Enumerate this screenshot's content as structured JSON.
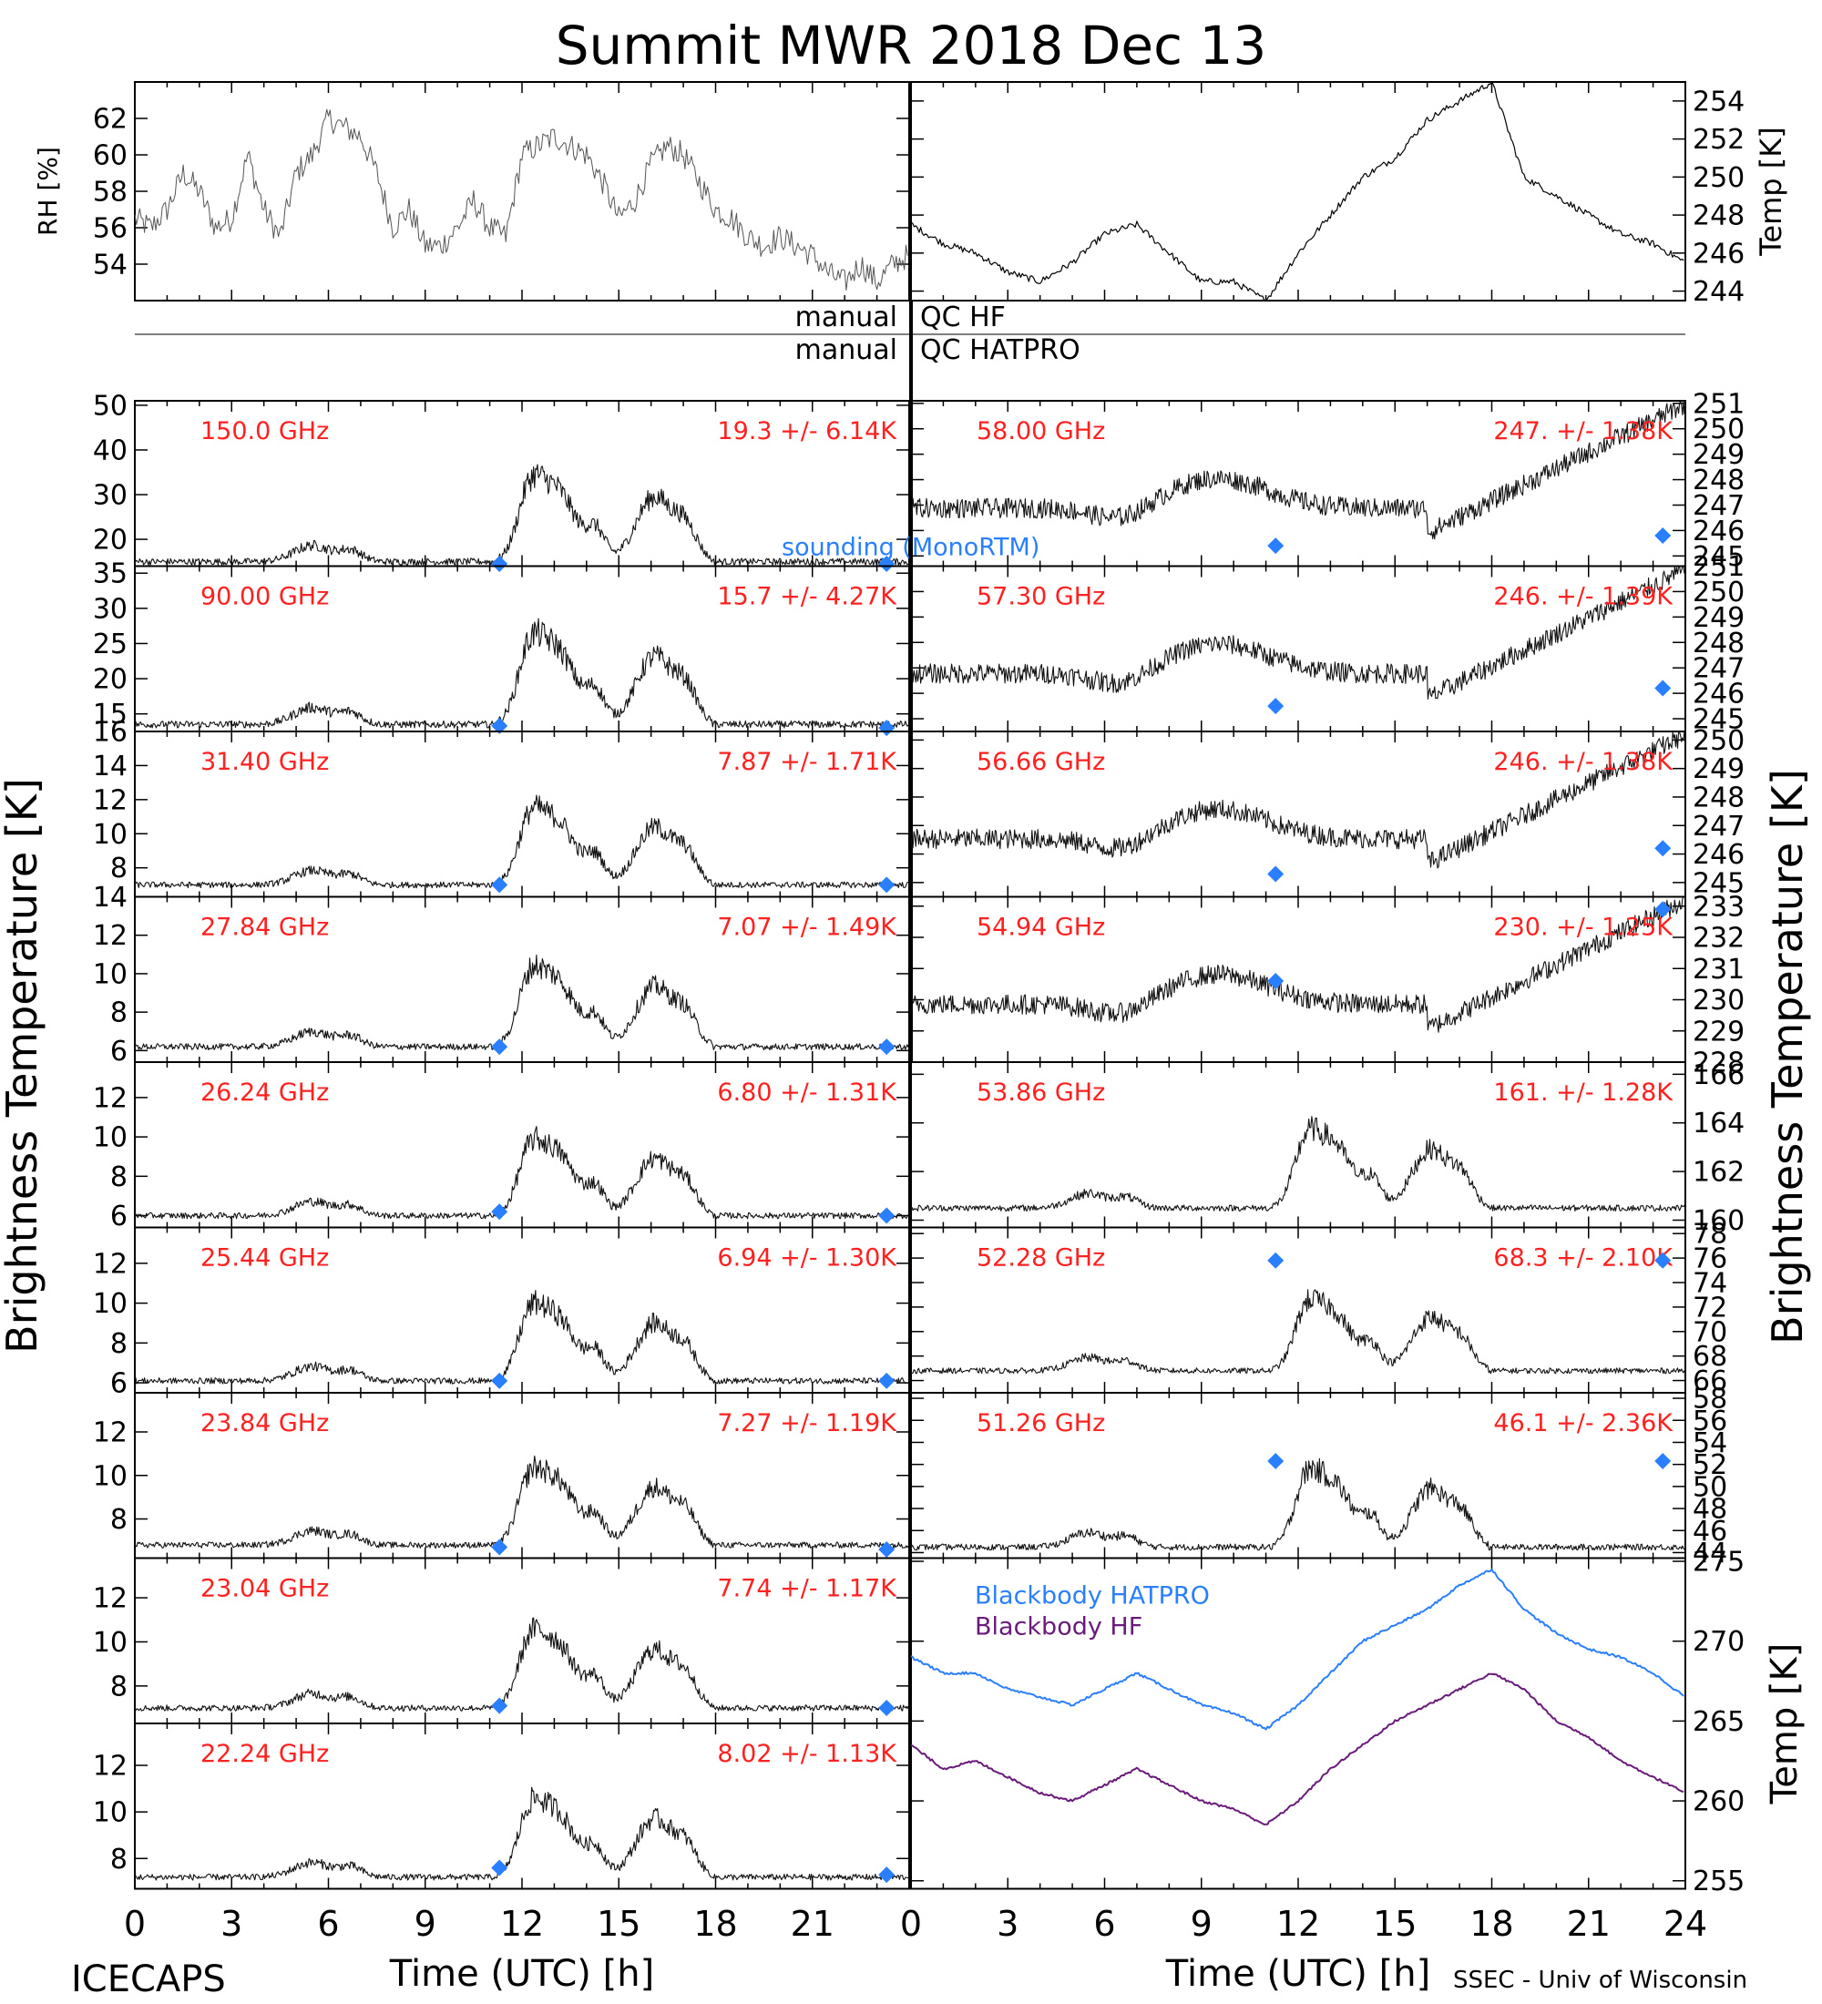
{
  "title": "Summit MWR 2018 Dec 13",
  "footer": {
    "left": "ICECAPS",
    "right": "SSEC - Univ of Wisconsin"
  },
  "x_axis": {
    "label": "Time (UTC) [h]",
    "left_ticks": [
      "0",
      "3",
      "6",
      "9",
      "12",
      "15",
      "18",
      "21"
    ],
    "right_ticks": [
      "0",
      "3",
      "6",
      "9",
      "12",
      "15",
      "18",
      "21",
      "24"
    ]
  },
  "left_axis_label": "Brightness Temperature [K]",
  "right_axis_label": "Brightness Temperature [K]",
  "qc": {
    "manual": "manual",
    "hf": "QC HF",
    "hatpro": "QC HATPRO"
  },
  "colors": {
    "annotation": "#ff2020",
    "sounding": "#2a7fff",
    "hatpro": "#2a7fff",
    "hf": "#6a1a7a",
    "trace": "#000000"
  },
  "chart_data": [
    {
      "type": "line",
      "id": "rh",
      "ylabel": "RH [%]",
      "ylim": [
        52,
        64
      ],
      "yticks": [
        54,
        56,
        58,
        60,
        62
      ],
      "x": [
        0,
        0.5,
        1,
        1.5,
        2,
        2.5,
        3,
        3.5,
        4,
        4.5,
        5,
        5.5,
        6,
        6.5,
        7,
        7.5,
        8,
        8.5,
        9,
        9.5,
        10,
        10.5,
        11,
        11.5,
        12,
        12.5,
        13,
        13.5,
        14,
        14.5,
        15,
        15.5,
        16,
        16.5,
        17,
        17.5,
        18,
        18.5,
        19,
        19.5,
        20,
        20.5,
        21,
        21.5,
        22,
        22.5,
        23,
        23.5,
        24
      ],
      "values": [
        56.5,
        56,
        57,
        59,
        58,
        56,
        56.5,
        60,
        57,
        55.5,
        59,
        60,
        62,
        61.5,
        61,
        59,
        56,
        57,
        55,
        55,
        56,
        57.5,
        56,
        55.5,
        60,
        60.5,
        61,
        60.5,
        60,
        58.5,
        56.5,
        57.5,
        59.5,
        60.5,
        60,
        58.5,
        57,
        56.5,
        55.5,
        55,
        55.5,
        55,
        54.5,
        53.5,
        53,
        54,
        53,
        54,
        54.5
      ]
    },
    {
      "type": "line",
      "id": "temp",
      "ylabel": "Temp [K]",
      "ylim": [
        243.5,
        255
      ],
      "yticks": [
        244,
        246,
        248,
        250,
        252,
        254
      ],
      "x": [
        0,
        1,
        2,
        3,
        4,
        5,
        6,
        7,
        8,
        9,
        10,
        11,
        12,
        13,
        14,
        15,
        16,
        17,
        18,
        19,
        20,
        21,
        22,
        23,
        24
      ],
      "values": [
        247.5,
        246.5,
        246,
        245,
        244.5,
        245.5,
        247,
        247.5,
        246,
        244.5,
        244.5,
        243.5,
        246,
        248,
        250,
        251,
        253,
        254,
        255,
        250,
        249,
        248,
        247,
        246.5,
        245.5
      ]
    },
    {
      "type": "line",
      "id": "ch150",
      "label": "150.0 GHz",
      "stat": "19.3 +/-  6.14K",
      "ylim": [
        14,
        51
      ],
      "yticks": [
        20,
        30,
        40,
        50
      ],
      "base": 15,
      "amp": 30,
      "sounding": [
        [
          11.3,
          14.5
        ],
        [
          23.3,
          14.5
        ]
      ],
      "sounding_label": "sounding (MonoRTM)"
    },
    {
      "type": "line",
      "id": "ch90",
      "label": "90.00 GHz",
      "stat": "15.7 +/-  4.27K",
      "ylim": [
        12.5,
        36
      ],
      "yticks": [
        15,
        20,
        25,
        30,
        35
      ],
      "base": 13.5,
      "amp": 20,
      "sounding": [
        [
          11.3,
          13.3
        ],
        [
          23.3,
          13
        ]
      ]
    },
    {
      "type": "line",
      "id": "ch31",
      "label": "31.40 GHz",
      "stat": "7.87 +/- 1.71K",
      "ylim": [
        6.3,
        16
      ],
      "yticks": [
        8,
        10,
        12,
        14,
        16
      ],
      "base": 7,
      "amp": 7,
      "sounding": [
        [
          11.3,
          7
        ],
        [
          23.3,
          7
        ]
      ]
    },
    {
      "type": "line",
      "id": "ch27",
      "label": "27.84 GHz",
      "stat": "7.07 +/- 1.49K",
      "ylim": [
        5.4,
        14
      ],
      "yticks": [
        6,
        8,
        10,
        12,
        14
      ],
      "base": 6.2,
      "amp": 6.5,
      "sounding": [
        [
          11.3,
          6.2
        ],
        [
          23.3,
          6.2
        ]
      ]
    },
    {
      "type": "line",
      "id": "ch26",
      "label": "26.24 GHz",
      "stat": "6.80 +/- 1.31K",
      "ylim": [
        5.4,
        13.8
      ],
      "yticks": [
        6,
        8,
        10,
        12
      ],
      "base": 6,
      "amp": 6,
      "sounding": [
        [
          11.3,
          6.2
        ],
        [
          23.3,
          6
        ]
      ]
    },
    {
      "type": "line",
      "id": "ch25",
      "label": "25.44 GHz",
      "stat": "6.94 +/- 1.30K",
      "ylim": [
        5.5,
        13.8
      ],
      "yticks": [
        6,
        8,
        10,
        12
      ],
      "base": 6.1,
      "amp": 6,
      "sounding": [
        [
          11.3,
          6.1
        ],
        [
          23.3,
          6.1
        ]
      ]
    },
    {
      "type": "line",
      "id": "ch2384",
      "label": "23.84 GHz",
      "stat": "7.27 +/- 1.19K",
      "ylim": [
        6.2,
        13.8
      ],
      "yticks": [
        8,
        10,
        12
      ],
      "base": 6.8,
      "amp": 5.5,
      "sounding": [
        [
          11.3,
          6.7
        ],
        [
          23.3,
          6.6
        ]
      ]
    },
    {
      "type": "line",
      "id": "ch2304",
      "label": "23.04 GHz",
      "stat": "7.74 +/- 1.17K",
      "ylim": [
        6.3,
        13.8
      ],
      "yticks": [
        8,
        10,
        12
      ],
      "base": 7,
      "amp": 5.5,
      "sounding": [
        [
          11.3,
          7.1
        ],
        [
          23.3,
          7
        ]
      ]
    },
    {
      "type": "line",
      "id": "ch2224",
      "label": "22.24 GHz",
      "stat": "8.02 +/- 1.13K",
      "ylim": [
        6.7,
        13.8
      ],
      "yticks": [
        8,
        10,
        12
      ],
      "base": 7.2,
      "amp": 5.2,
      "sounding": [
        [
          11.3,
          7.6
        ],
        [
          23.3,
          7.3
        ]
      ]
    },
    {
      "type": "line",
      "id": "ch5800",
      "label": "58.00 GHz",
      "stat": "247. +/- 1.38K",
      "ylim": [
        244.6,
        251.1
      ],
      "yticks": [
        245,
        246,
        247,
        248,
        249,
        250,
        251
      ],
      "sounding": [
        [
          11.3,
          245.4
        ],
        [
          23.3,
          245.8
        ]
      ]
    },
    {
      "type": "line",
      "id": "ch5730",
      "label": "57.30 GHz",
      "stat": "246. +/- 1.39K",
      "ylim": [
        244.5,
        251
      ],
      "yticks": [
        245,
        246,
        247,
        248,
        249,
        250,
        251
      ],
      "sounding": [
        [
          11.3,
          245.5
        ],
        [
          23.3,
          246.2
        ]
      ]
    },
    {
      "type": "line",
      "id": "ch5666",
      "label": "56.66 GHz",
      "stat": "246. +/- 1.38K",
      "ylim": [
        244.5,
        250.3
      ],
      "yticks": [
        245,
        246,
        247,
        248,
        249,
        250
      ],
      "sounding": [
        [
          11.3,
          245.3
        ],
        [
          23.3,
          246.2
        ]
      ]
    },
    {
      "type": "line",
      "id": "ch5494",
      "label": "54.94 GHz",
      "stat": "230. +/- 1.25K",
      "ylim": [
        228,
        233.3
      ],
      "yticks": [
        228,
        229,
        230,
        231,
        232,
        233
      ],
      "sounding": [
        [
          11.3,
          230.6
        ],
        [
          23.3,
          232.9
        ]
      ]
    },
    {
      "type": "line",
      "id": "ch5386",
      "label": "53.86 GHz",
      "stat": "161. +/- 1.28K",
      "ylim": [
        159.7,
        166.5
      ],
      "yticks": [
        160,
        162,
        164,
        166
      ],
      "base": 160.5,
      "amp": 5
    },
    {
      "type": "line",
      "id": "ch5228",
      "label": "52.28 GHz",
      "stat": "68.3 +/- 2.10K",
      "ylim": [
        65,
        78.5
      ],
      "yticks": [
        66,
        68,
        70,
        72,
        74,
        76,
        78
      ],
      "base": 66.8,
      "amp": 9,
      "sounding": [
        [
          11.3,
          75.8
        ],
        [
          23.3,
          75.8
        ]
      ]
    },
    {
      "type": "line",
      "id": "ch5126",
      "label": "51.26 GHz",
      "stat": "46.1 +/- 2.36K",
      "ylim": [
        43.5,
        58.5
      ],
      "yticks": [
        44,
        46,
        48,
        50,
        52,
        54,
        56,
        58
      ],
      "base": 44.5,
      "amp": 11,
      "sounding": [
        [
          11.3,
          52.3
        ],
        [
          23.3,
          52.3
        ]
      ]
    },
    {
      "type": "line",
      "id": "blackbody",
      "ylabel": "Temp [K]",
      "ylim": [
        254.5,
        275.2
      ],
      "yticks": [
        255,
        260,
        265,
        270,
        275
      ],
      "series": [
        {
          "name": "Blackbody HATPRO",
          "x": [
            0,
            1,
            2,
            3,
            4,
            5,
            6,
            7,
            8,
            9,
            10,
            11,
            12,
            13,
            14,
            15,
            16,
            17,
            18,
            19,
            20,
            21,
            22,
            23,
            24
          ],
          "values": [
            269,
            268,
            268,
            267,
            266.5,
            266,
            267,
            268,
            267,
            266,
            265.5,
            264.5,
            266,
            268,
            270,
            271,
            272,
            273.5,
            274.5,
            272,
            270.5,
            269.5,
            269,
            268,
            266.5
          ]
        },
        {
          "name": "Blackbody HF",
          "x": [
            0,
            1,
            2,
            3,
            4,
            5,
            6,
            7,
            8,
            9,
            10,
            11,
            12,
            13,
            14,
            15,
            16,
            17,
            18,
            19,
            20,
            21,
            22,
            23,
            24
          ],
          "values": [
            263.5,
            262,
            262.5,
            261.5,
            260.5,
            260,
            261,
            262,
            261,
            260,
            259.5,
            258.5,
            260,
            262,
            263.5,
            265,
            266,
            267,
            268,
            267,
            265,
            264,
            262.5,
            261.5,
            260.5
          ]
        }
      ]
    }
  ]
}
